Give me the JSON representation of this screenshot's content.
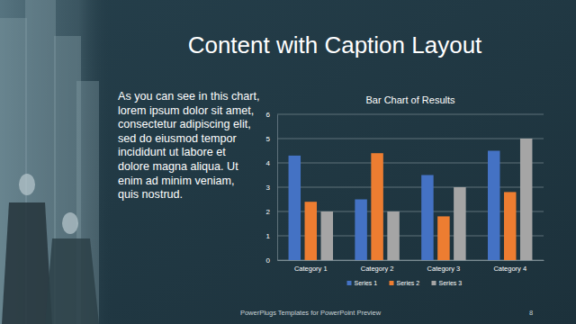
{
  "slide": {
    "title": "Content with Caption Layout",
    "caption_lines": [
      "As you can see in this chart,",
      "lorem ipsum dolor sit amet,",
      "consectetur adipiscing elit,",
      "sed do eiusmod tempor",
      "incididunt ut labore et",
      "dolore magna aliqua. Ut",
      "enim ad minim veniam,",
      "quis nostrud."
    ],
    "footer": "PowerPlugs Templates for PowerPoint Preview",
    "page_number": "8"
  },
  "chart_data": {
    "type": "bar",
    "title": "Bar Chart of Results",
    "categories": [
      "Category 1",
      "Category 2",
      "Category 3",
      "Category 4"
    ],
    "series": [
      {
        "name": "Series 1",
        "color": "#4472c4",
        "values": [
          4.3,
          2.5,
          3.5,
          4.5
        ]
      },
      {
        "name": "Series 2",
        "color": "#ed7d31",
        "values": [
          2.4,
          4.4,
          1.8,
          2.8
        ]
      },
      {
        "name": "Series 3",
        "color": "#a5a5a5",
        "values": [
          2,
          2,
          3,
          5
        ]
      }
    ],
    "ylim": [
      0,
      6
    ],
    "yticks": [
      0,
      1,
      2,
      3,
      4,
      5,
      6
    ],
    "grid": true,
    "legend": "bottom"
  }
}
